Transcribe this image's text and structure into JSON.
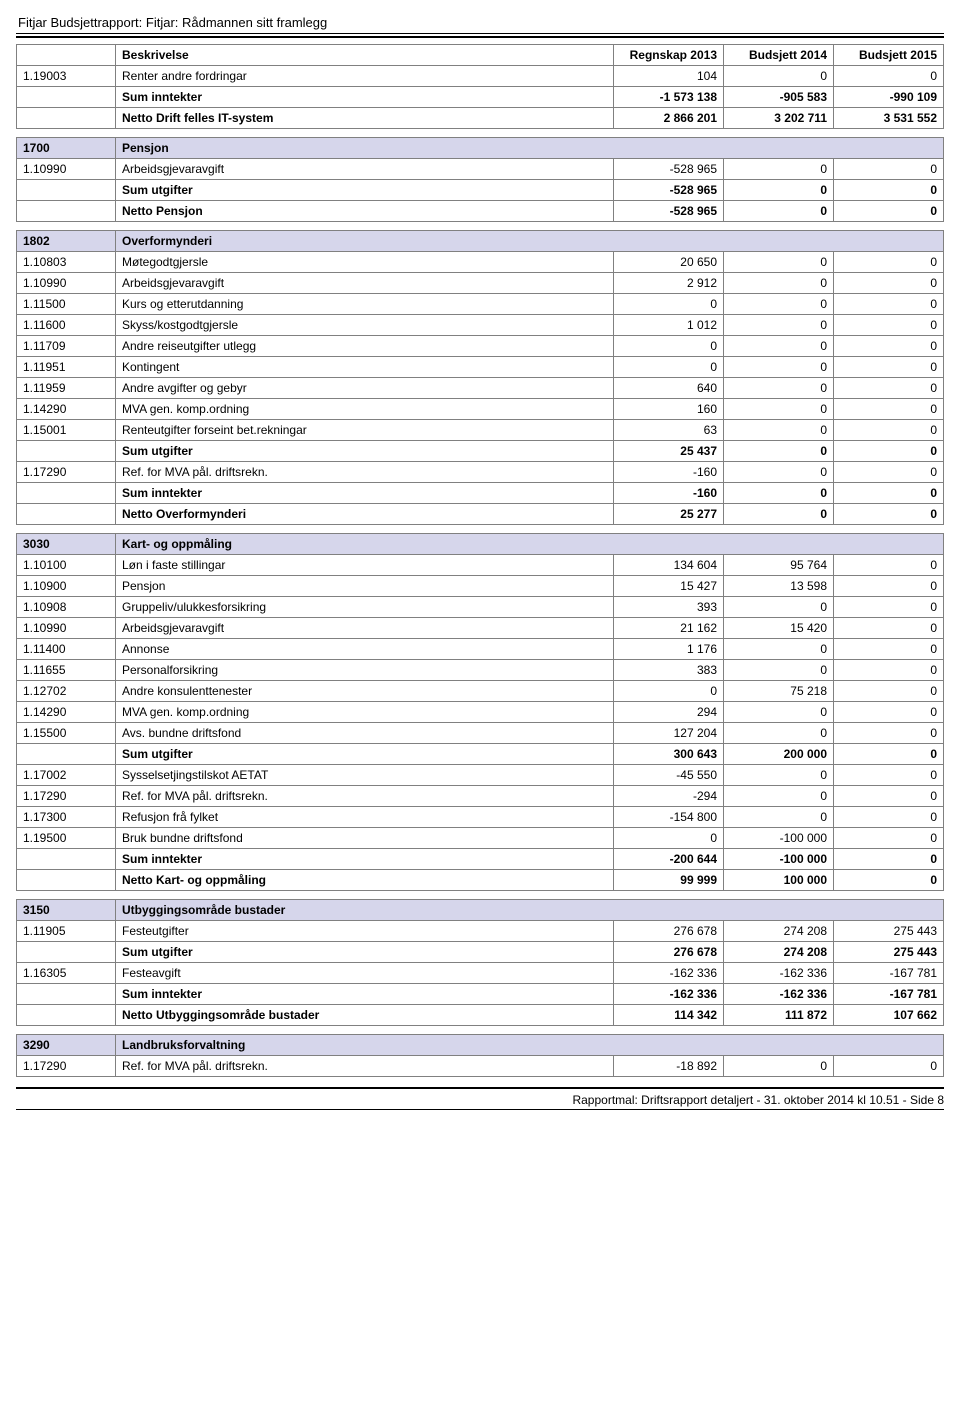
{
  "report_title": "Fitjar Budsjettrapport: Fitjar: Rådmannen sitt framlegg",
  "footer": "Rapportmal: Driftsrapport detaljert - 31. oktober 2014 kl 10.51 - Side 8",
  "headers": {
    "desc": "Beskrivelse",
    "col1": "Regnskap 2013",
    "col2": "Budsjett 2014",
    "col3": "Budsjett 2015"
  },
  "rows": [
    {
      "type": "line",
      "code": "1.19003",
      "desc": "Renter andre fordringar",
      "v": [
        "104",
        "0",
        "0"
      ]
    },
    {
      "type": "bold",
      "code": "",
      "desc": "Sum inntekter",
      "v": [
        "-1 573 138",
        "-905 583",
        "-990 109"
      ]
    },
    {
      "type": "bold",
      "code": "",
      "desc": "Netto Drift felles IT-system",
      "v": [
        "2 866 201",
        "3 202 711",
        "3 531 552"
      ]
    },
    {
      "type": "spacer"
    },
    {
      "type": "section",
      "code": "1700",
      "desc": "Pensjon"
    },
    {
      "type": "line",
      "code": "1.10990",
      "desc": "Arbeidsgjevaravgift",
      "v": [
        "-528 965",
        "0",
        "0"
      ]
    },
    {
      "type": "bold",
      "code": "",
      "desc": "Sum utgifter",
      "v": [
        "-528 965",
        "0",
        "0"
      ]
    },
    {
      "type": "bold",
      "code": "",
      "desc": "Netto Pensjon",
      "v": [
        "-528 965",
        "0",
        "0"
      ]
    },
    {
      "type": "spacer"
    },
    {
      "type": "section",
      "code": "1802",
      "desc": "Overformynderi"
    },
    {
      "type": "line",
      "code": "1.10803",
      "desc": "Møtegodtgjersle",
      "v": [
        "20 650",
        "0",
        "0"
      ]
    },
    {
      "type": "line",
      "code": "1.10990",
      "desc": "Arbeidsgjevaravgift",
      "v": [
        "2 912",
        "0",
        "0"
      ]
    },
    {
      "type": "line",
      "code": "1.11500",
      "desc": "Kurs og etterutdanning",
      "v": [
        "0",
        "0",
        "0"
      ]
    },
    {
      "type": "line",
      "code": "1.11600",
      "desc": "Skyss/kostgodtgjersle",
      "v": [
        "1 012",
        "0",
        "0"
      ]
    },
    {
      "type": "line",
      "code": "1.11709",
      "desc": "Andre reiseutgifter utlegg",
      "v": [
        "0",
        "0",
        "0"
      ]
    },
    {
      "type": "line",
      "code": "1.11951",
      "desc": "Kontingent",
      "v": [
        "0",
        "0",
        "0"
      ]
    },
    {
      "type": "line",
      "code": "1.11959",
      "desc": "Andre avgifter og gebyr",
      "v": [
        "640",
        "0",
        "0"
      ]
    },
    {
      "type": "line",
      "code": "1.14290",
      "desc": "MVA gen. komp.ordning",
      "v": [
        "160",
        "0",
        "0"
      ]
    },
    {
      "type": "line",
      "code": "1.15001",
      "desc": "Renteutgifter forseint bet.rekningar",
      "v": [
        "63",
        "0",
        "0"
      ]
    },
    {
      "type": "bold",
      "code": "",
      "desc": "Sum utgifter",
      "v": [
        "25 437",
        "0",
        "0"
      ]
    },
    {
      "type": "line",
      "code": "1.17290",
      "desc": "Ref. for MVA pål. driftsrekn.",
      "v": [
        "-160",
        "0",
        "0"
      ]
    },
    {
      "type": "bold",
      "code": "",
      "desc": "Sum inntekter",
      "v": [
        "-160",
        "0",
        "0"
      ]
    },
    {
      "type": "bold",
      "code": "",
      "desc": "Netto Overformynderi",
      "v": [
        "25 277",
        "0",
        "0"
      ]
    },
    {
      "type": "spacer"
    },
    {
      "type": "section",
      "code": "3030",
      "desc": "Kart- og oppmåling"
    },
    {
      "type": "line",
      "code": "1.10100",
      "desc": "Løn i faste stillingar",
      "v": [
        "134 604",
        "95 764",
        "0"
      ]
    },
    {
      "type": "line",
      "code": "1.10900",
      "desc": "Pensjon",
      "v": [
        "15 427",
        "13 598",
        "0"
      ]
    },
    {
      "type": "line",
      "code": "1.10908",
      "desc": "Gruppeliv/ulukkesforsikring",
      "v": [
        "393",
        "0",
        "0"
      ]
    },
    {
      "type": "line",
      "code": "1.10990",
      "desc": "Arbeidsgjevaravgift",
      "v": [
        "21 162",
        "15 420",
        "0"
      ]
    },
    {
      "type": "line",
      "code": "1.11400",
      "desc": "Annonse",
      "v": [
        "1 176",
        "0",
        "0"
      ]
    },
    {
      "type": "line",
      "code": "1.11655",
      "desc": "Personalforsikring",
      "v": [
        "383",
        "0",
        "0"
      ]
    },
    {
      "type": "line",
      "code": "1.12702",
      "desc": "Andre konsulenttenester",
      "v": [
        "0",
        "75 218",
        "0"
      ]
    },
    {
      "type": "line",
      "code": "1.14290",
      "desc": "MVA gen. komp.ordning",
      "v": [
        "294",
        "0",
        "0"
      ]
    },
    {
      "type": "line",
      "code": "1.15500",
      "desc": "Avs. bundne driftsfond",
      "v": [
        "127 204",
        "0",
        "0"
      ]
    },
    {
      "type": "bold",
      "code": "",
      "desc": "Sum utgifter",
      "v": [
        "300 643",
        "200 000",
        "0"
      ]
    },
    {
      "type": "line",
      "code": "1.17002",
      "desc": "Sysselsetjingstilskot AETAT",
      "v": [
        "-45 550",
        "0",
        "0"
      ]
    },
    {
      "type": "line",
      "code": "1.17290",
      "desc": "Ref. for MVA pål. driftsrekn.",
      "v": [
        "-294",
        "0",
        "0"
      ]
    },
    {
      "type": "line",
      "code": "1.17300",
      "desc": "Refusjon frå fylket",
      "v": [
        "-154 800",
        "0",
        "0"
      ]
    },
    {
      "type": "line",
      "code": "1.19500",
      "desc": "Bruk bundne driftsfond",
      "v": [
        "0",
        "-100 000",
        "0"
      ]
    },
    {
      "type": "bold",
      "code": "",
      "desc": "Sum inntekter",
      "v": [
        "-200 644",
        "-100 000",
        "0"
      ]
    },
    {
      "type": "bold",
      "code": "",
      "desc": "Netto Kart- og oppmåling",
      "v": [
        "99 999",
        "100 000",
        "0"
      ]
    },
    {
      "type": "spacer"
    },
    {
      "type": "section",
      "code": "3150",
      "desc": "Utbyggingsområde bustader"
    },
    {
      "type": "line",
      "code": "1.11905",
      "desc": "Festeutgifter",
      "v": [
        "276 678",
        "274 208",
        "275 443"
      ]
    },
    {
      "type": "bold",
      "code": "",
      "desc": "Sum utgifter",
      "v": [
        "276 678",
        "274 208",
        "275 443"
      ]
    },
    {
      "type": "line",
      "code": "1.16305",
      "desc": "Festeavgift",
      "v": [
        "-162 336",
        "-162 336",
        "-167 781"
      ]
    },
    {
      "type": "bold",
      "code": "",
      "desc": "Sum inntekter",
      "v": [
        "-162 336",
        "-162 336",
        "-167 781"
      ]
    },
    {
      "type": "bold",
      "code": "",
      "desc": "Netto Utbyggingsområde bustader",
      "v": [
        "114 342",
        "111 872",
        "107 662"
      ]
    },
    {
      "type": "spacer"
    },
    {
      "type": "section",
      "code": "3290",
      "desc": "Landbruksforvaltning"
    },
    {
      "type": "line",
      "code": "1.17290",
      "desc": "Ref. for MVA pål. driftsrekn.",
      "v": [
        "-18 892",
        "0",
        "0"
      ]
    }
  ]
}
